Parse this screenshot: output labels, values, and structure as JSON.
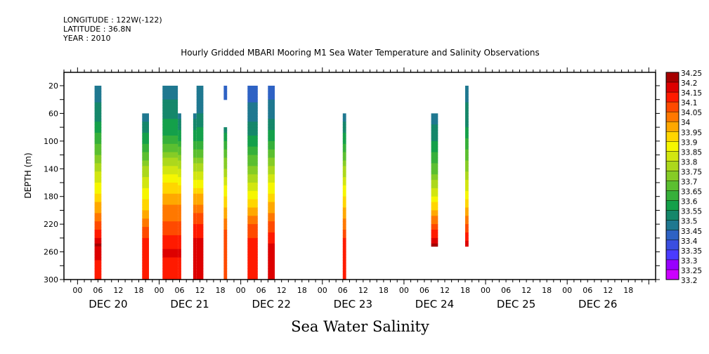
{
  "header": {
    "longitude": "LONGITUDE : 122W(-122)",
    "latitude": "LATITUDE : 36.8N",
    "year": "YEAR : 2010"
  },
  "chart_data": {
    "type": "heatmap",
    "title": "Hourly Gridded MBARI Mooring M1 Sea Water Temperature and Salinity Observations",
    "bottom_title": "Sea Water Salinity",
    "xlabel": "",
    "ylabel": "DEPTH (m)",
    "ylim": [
      300,
      0
    ],
    "yticks": [
      20,
      60,
      100,
      140,
      180,
      220,
      260,
      300
    ],
    "x_time_range_hours": [
      -4,
      170
    ],
    "x_origin": "DEC 20 00:00",
    "x_hour_ticks": [
      "00",
      "06",
      "12",
      "18",
      "00",
      "06",
      "12",
      "18",
      "00",
      "06",
      "12",
      "18",
      "00",
      "06",
      "12",
      "18",
      "00",
      "06",
      "12",
      "18",
      "00",
      "06",
      "12",
      "18",
      "00",
      "06",
      "12",
      "18"
    ],
    "x_day_labels": [
      "DEC 20",
      "DEC 21",
      "DEC 22",
      "DEC 23",
      "DEC 24",
      "DEC 25",
      "DEC 26"
    ],
    "colorbar": {
      "levels": [
        33.2,
        33.25,
        33.3,
        33.35,
        33.4,
        33.45,
        33.5,
        33.55,
        33.6,
        33.65,
        33.7,
        33.75,
        33.8,
        33.85,
        33.9,
        33.95,
        34,
        34.05,
        34.1,
        34.15,
        34.2,
        34.25
      ],
      "labels": [
        "34.25",
        "34.2",
        "34.15",
        "34.1",
        "34.05",
        "34",
        "33.95",
        "33.9",
        "33.85",
        "33.8",
        "33.75",
        "33.7",
        "33.65",
        "33.6",
        "33.55",
        "33.5",
        "33.45",
        "33.4",
        "33.35",
        "33.3",
        "33.25",
        "33.2"
      ],
      "colors": [
        "#cc00ff",
        "#9900ff",
        "#4b3bff",
        "#3a4ee0",
        "#2e62c4",
        "#1f7890",
        "#15876a",
        "#14a04a",
        "#36b03a",
        "#5bbf30",
        "#86cc26",
        "#acd81c",
        "#d2e610",
        "#f6f600",
        "#ffd600",
        "#ffa800",
        "#ff7800",
        "#ff4a00",
        "#ff1a00",
        "#dd0000",
        "#a60000"
      ]
    },
    "columns": [
      {
        "day": "DEC 20",
        "start_hour": 5,
        "end_hour": 7,
        "top_depth": 20,
        "profile": [
          [
            20,
            33.47
          ],
          [
            60,
            33.52
          ],
          [
            100,
            33.63
          ],
          [
            140,
            33.78
          ],
          [
            180,
            33.92
          ],
          [
            220,
            34.06
          ],
          [
            250,
            34.2
          ],
          [
            270,
            34.15
          ],
          [
            300,
            34.1
          ]
        ]
      },
      {
        "day": "DEC 20",
        "start_hour": 19,
        "end_hour": 21,
        "top_depth": 60,
        "profile": [
          [
            60,
            33.47
          ],
          [
            100,
            33.58
          ],
          [
            140,
            33.76
          ],
          [
            180,
            33.88
          ],
          [
            220,
            34.03
          ],
          [
            240,
            34.1
          ],
          [
            300,
            34.1
          ]
        ]
      },
      {
        "day": "DEC 21",
        "start_hour": 1,
        "end_hour": 5.5,
        "top_depth": 20,
        "profile": [
          [
            20,
            33.47
          ],
          [
            70,
            33.55
          ],
          [
            100,
            33.62
          ],
          [
            140,
            33.82
          ],
          [
            180,
            33.97
          ],
          [
            220,
            34.06
          ],
          [
            260,
            34.16
          ],
          [
            300,
            34.1
          ]
        ]
      },
      {
        "day": "DEC 21",
        "start_hour": 5.5,
        "end_hour": 6.5,
        "top_depth": 60,
        "profile": [
          [
            60,
            33.48
          ],
          [
            100,
            33.6
          ],
          [
            140,
            33.8
          ],
          [
            180,
            33.97
          ],
          [
            220,
            34.06
          ],
          [
            260,
            34.16
          ],
          [
            300,
            34.1
          ]
        ]
      },
      {
        "day": "DEC 21",
        "start_hour": 10,
        "end_hour": 11,
        "top_depth": 60,
        "profile": [
          [
            60,
            33.48
          ],
          [
            100,
            33.6
          ],
          [
            140,
            33.78
          ],
          [
            180,
            33.96
          ],
          [
            220,
            34.1
          ],
          [
            260,
            34.2
          ],
          [
            300,
            34.15
          ]
        ]
      },
      {
        "day": "DEC 21",
        "start_hour": 11,
        "end_hour": 13,
        "top_depth": 20,
        "profile": [
          [
            20,
            33.47
          ],
          [
            60,
            33.5
          ],
          [
            100,
            33.6
          ],
          [
            140,
            33.78
          ],
          [
            180,
            33.96
          ],
          [
            220,
            34.1
          ],
          [
            260,
            34.2
          ],
          [
            300,
            34.15
          ]
        ]
      },
      {
        "day": "DEC 21",
        "start_hour": 19,
        "end_hour": 20,
        "top_depth": 20,
        "bottom_depth": 40,
        "profile": [
          [
            20,
            33.42
          ],
          [
            40,
            33.42
          ]
        ]
      },
      {
        "day": "DEC 21",
        "start_hour": 19,
        "end_hour": 20,
        "top_depth": 80,
        "profile": [
          [
            80,
            33.52
          ],
          [
            120,
            33.68
          ],
          [
            160,
            33.83
          ],
          [
            200,
            33.97
          ],
          [
            240,
            34.08
          ],
          [
            300,
            34.1
          ]
        ]
      },
      {
        "day": "DEC 22",
        "start_hour": 2,
        "end_hour": 5,
        "top_depth": 20,
        "profile": [
          [
            20,
            33.42
          ],
          [
            60,
            33.47
          ],
          [
            100,
            33.57
          ],
          [
            140,
            33.72
          ],
          [
            180,
            33.88
          ],
          [
            220,
            34.05
          ],
          [
            260,
            34.15
          ],
          [
            300,
            34.1
          ]
        ]
      },
      {
        "day": "DEC 22",
        "start_hour": 8,
        "end_hour": 10,
        "top_depth": 20,
        "profile": [
          [
            20,
            33.42
          ],
          [
            60,
            33.48
          ],
          [
            100,
            33.6
          ],
          [
            140,
            33.77
          ],
          [
            180,
            33.92
          ],
          [
            220,
            34.06
          ],
          [
            260,
            34.18
          ],
          [
            300,
            34.15
          ]
        ]
      },
      {
        "day": "DEC 23",
        "start_hour": 6,
        "end_hour": 7,
        "top_depth": 60,
        "profile": [
          [
            60,
            33.47
          ],
          [
            100,
            33.58
          ],
          [
            140,
            33.76
          ],
          [
            180,
            33.9
          ],
          [
            220,
            34.02
          ],
          [
            240,
            34.1
          ],
          [
            300,
            34.1
          ]
        ]
      },
      {
        "day": "DEC 24",
        "start_hour": 8,
        "end_hour": 10,
        "top_depth": 60,
        "profile": [
          [
            60,
            33.47
          ],
          [
            100,
            33.55
          ],
          [
            140,
            33.67
          ],
          [
            180,
            33.85
          ],
          [
            220,
            34.05
          ],
          [
            250,
            34.2
          ]
        ]
      },
      {
        "day": "DEC 24",
        "start_hour": 18,
        "end_hour": 19,
        "top_depth": 20,
        "profile": [
          [
            20,
            33.47
          ],
          [
            80,
            33.55
          ],
          [
            120,
            33.67
          ],
          [
            180,
            33.88
          ],
          [
            220,
            34.05
          ],
          [
            250,
            34.18
          ]
        ]
      }
    ]
  }
}
